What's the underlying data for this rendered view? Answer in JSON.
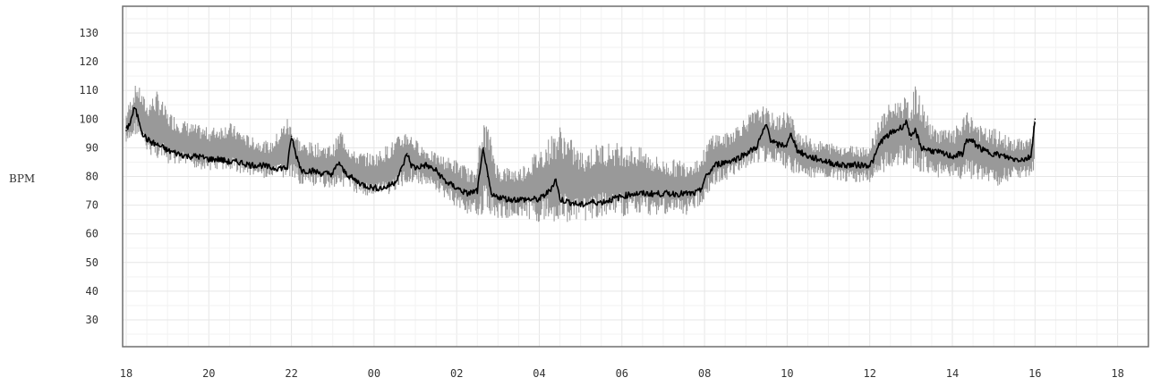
{
  "chart_data": {
    "type": "line",
    "title": "",
    "xlabel": "",
    "ylabel": "BPM",
    "ylim": [
      20,
      136
    ],
    "yticks": [
      30,
      40,
      50,
      60,
      70,
      80,
      90,
      100,
      110,
      120,
      130
    ],
    "x_tick_labels": [
      "18",
      "20",
      "22",
      "00",
      "02",
      "04",
      "06",
      "08",
      "10",
      "12",
      "14",
      "16",
      "18"
    ],
    "x_unit": "hour of day",
    "xlim_hours": [
      18,
      42
    ],
    "grid": true,
    "series": [
      {
        "color": "#999999",
        "band": "light grey envelope of per-interval min/max heart rate",
        "points": [
          [
            18.0,
            90,
            103
          ],
          [
            18.25,
            95,
            113
          ],
          [
            18.5,
            88,
            106
          ],
          [
            18.75,
            86,
            110
          ],
          [
            19.0,
            84,
            103
          ],
          [
            19.5,
            83,
            99
          ],
          [
            20.0,
            82,
            97
          ],
          [
            20.5,
            82,
            99
          ],
          [
            21.0,
            80,
            94
          ],
          [
            21.5,
            79,
            92
          ],
          [
            21.9,
            79,
            101
          ],
          [
            22.25,
            77,
            92
          ],
          [
            22.5,
            76,
            92
          ],
          [
            23.0,
            76,
            91
          ],
          [
            23.2,
            77,
            97
          ],
          [
            23.5,
            74,
            89
          ],
          [
            24.0,
            73,
            88
          ],
          [
            24.5,
            74,
            93
          ],
          [
            24.8,
            77,
            97
          ],
          [
            25.0,
            78,
            93
          ],
          [
            25.5,
            75,
            88
          ],
          [
            26.0,
            69,
            86
          ],
          [
            26.4,
            66,
            82
          ],
          [
            26.7,
            67,
            101
          ],
          [
            27.0,
            65,
            84
          ],
          [
            27.5,
            66,
            83
          ],
          [
            28.0,
            64,
            90
          ],
          [
            28.5,
            64,
            98
          ],
          [
            29.0,
            64,
            89
          ],
          [
            29.5,
            66,
            92
          ],
          [
            30.0,
            66,
            92
          ],
          [
            30.5,
            66,
            90
          ],
          [
            31.0,
            67,
            86
          ],
          [
            31.5,
            66,
            86
          ],
          [
            31.9,
            70,
            87
          ],
          [
            32.2,
            76,
            96
          ],
          [
            32.5,
            78,
            95
          ],
          [
            33.0,
            83,
            101
          ],
          [
            33.4,
            85,
            105
          ],
          [
            33.75,
            84,
            101
          ],
          [
            34.0,
            82,
            104
          ],
          [
            34.3,
            80,
            96
          ],
          [
            34.6,
            79,
            93
          ],
          [
            35.0,
            79,
            92
          ],
          [
            35.5,
            78,
            91
          ],
          [
            36.0,
            78,
            91
          ],
          [
            36.2,
            80,
            100
          ],
          [
            36.5,
            83,
            106
          ],
          [
            36.8,
            84,
            108
          ],
          [
            37.0,
            82,
            106
          ],
          [
            37.1,
            82,
            112
          ],
          [
            37.5,
            80,
            98
          ],
          [
            38.0,
            79,
            96
          ],
          [
            38.4,
            79,
            103
          ],
          [
            38.75,
            78,
            97
          ],
          [
            39.0,
            76,
            97
          ],
          [
            39.5,
            79,
            93
          ],
          [
            39.9,
            80,
            94
          ],
          [
            40.0,
            83,
            105
          ]
        ]
      },
      {
        "color": "#000000",
        "label": "dark line of typical heart rate",
        "points": [
          [
            18.0,
            96
          ],
          [
            18.1,
            99
          ],
          [
            18.2,
            104
          ],
          [
            18.3,
            100
          ],
          [
            18.4,
            95
          ],
          [
            18.5,
            93
          ],
          [
            18.6,
            92
          ],
          [
            18.75,
            91
          ],
          [
            18.9,
            90
          ],
          [
            19.0,
            89
          ],
          [
            19.25,
            88
          ],
          [
            19.5,
            87
          ],
          [
            19.75,
            87
          ],
          [
            20.0,
            86
          ],
          [
            20.25,
            86
          ],
          [
            20.5,
            85
          ],
          [
            20.75,
            85
          ],
          [
            21.0,
            84
          ],
          [
            21.25,
            84
          ],
          [
            21.5,
            83
          ],
          [
            21.75,
            83
          ],
          [
            21.9,
            83
          ],
          [
            22.0,
            94
          ],
          [
            22.1,
            88
          ],
          [
            22.25,
            82
          ],
          [
            22.5,
            82
          ],
          [
            22.75,
            81
          ],
          [
            23.0,
            81
          ],
          [
            23.15,
            85
          ],
          [
            23.25,
            82
          ],
          [
            23.5,
            79
          ],
          [
            23.75,
            77
          ],
          [
            24.0,
            76
          ],
          [
            24.25,
            76
          ],
          [
            24.5,
            78
          ],
          [
            24.65,
            82
          ],
          [
            24.8,
            88
          ],
          [
            24.9,
            84
          ],
          [
            25.0,
            83
          ],
          [
            25.25,
            84
          ],
          [
            25.5,
            82
          ],
          [
            25.75,
            78
          ],
          [
            26.0,
            76
          ],
          [
            26.25,
            74
          ],
          [
            26.5,
            75
          ],
          [
            26.65,
            90
          ],
          [
            26.75,
            80
          ],
          [
            26.85,
            73
          ],
          [
            27.0,
            73
          ],
          [
            27.25,
            72
          ],
          [
            27.5,
            72
          ],
          [
            27.75,
            72
          ],
          [
            28.0,
            72
          ],
          [
            28.25,
            75
          ],
          [
            28.4,
            79
          ],
          [
            28.5,
            72
          ],
          [
            28.75,
            71
          ],
          [
            29.0,
            70
          ],
          [
            29.25,
            71
          ],
          [
            29.5,
            71
          ],
          [
            29.75,
            72
          ],
          [
            30.0,
            73
          ],
          [
            30.25,
            74
          ],
          [
            30.5,
            74
          ],
          [
            30.75,
            74
          ],
          [
            31.0,
            74
          ],
          [
            31.25,
            74
          ],
          [
            31.5,
            74
          ],
          [
            31.75,
            74
          ],
          [
            31.9,
            75
          ],
          [
            32.0,
            79
          ],
          [
            32.25,
            84
          ],
          [
            32.5,
            85
          ],
          [
            32.75,
            86
          ],
          [
            33.0,
            88
          ],
          [
            33.25,
            90
          ],
          [
            33.4,
            95
          ],
          [
            33.5,
            98
          ],
          [
            33.6,
            93
          ],
          [
            33.75,
            91
          ],
          [
            34.0,
            91
          ],
          [
            34.1,
            95
          ],
          [
            34.25,
            89
          ],
          [
            34.5,
            87
          ],
          [
            34.75,
            86
          ],
          [
            35.0,
            85
          ],
          [
            35.25,
            84
          ],
          [
            35.5,
            84
          ],
          [
            35.75,
            84
          ],
          [
            36.0,
            84
          ],
          [
            36.1,
            86
          ],
          [
            36.25,
            92
          ],
          [
            36.5,
            95
          ],
          [
            36.75,
            97
          ],
          [
            36.9,
            99
          ],
          [
            37.0,
            93
          ],
          [
            37.1,
            96
          ],
          [
            37.25,
            90
          ],
          [
            37.5,
            89
          ],
          [
            37.75,
            88
          ],
          [
            38.0,
            87
          ],
          [
            38.25,
            88
          ],
          [
            38.35,
            93
          ],
          [
            38.5,
            92
          ],
          [
            38.75,
            89
          ],
          [
            39.0,
            88
          ],
          [
            39.25,
            87
          ],
          [
            39.5,
            86
          ],
          [
            39.75,
            86
          ],
          [
            39.9,
            87
          ],
          [
            40.0,
            100
          ]
        ]
      }
    ]
  }
}
